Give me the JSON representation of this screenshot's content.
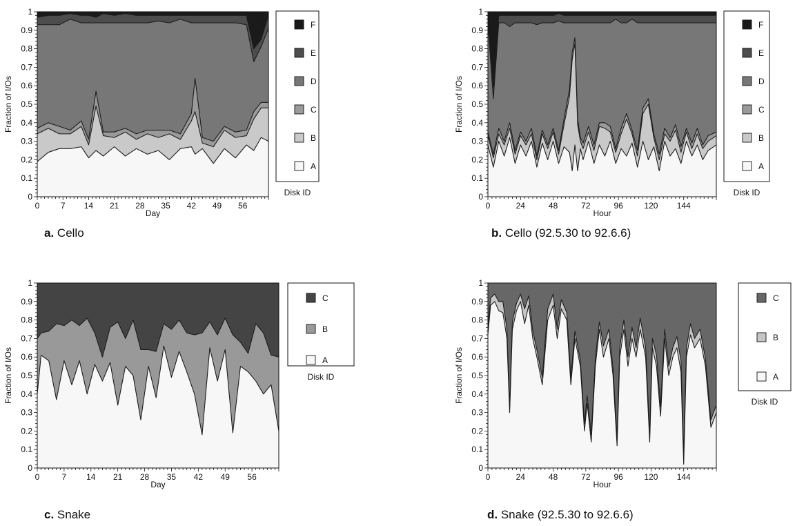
{
  "colors": {
    "A": "#f7f7f7",
    "B": "#c9c9c9",
    "C": "#9a9a9a",
    "D": "#777777",
    "E": "#4d4d4d",
    "F": "#1a1a1a",
    "snakeB": "#999999",
    "snakeC": "#444444",
    "hourSnakeB": "#c6c6c6",
    "hourSnakeC": "#676767",
    "stroke": "#1c1c1c"
  },
  "chart_data": [
    {
      "type": "area",
      "stacked": true,
      "caption_letter": "a.",
      "caption_text": "Cello",
      "xlabel": "Day",
      "ylabel": "Fraction of I/Os",
      "xlim": [
        0,
        63
      ],
      "ylim": [
        0,
        1
      ],
      "xticks": [
        0,
        7,
        14,
        21,
        28,
        35,
        42,
        49,
        56
      ],
      "yticks": [
        "0",
        "0.1",
        "0.2",
        "0.3",
        "0.4",
        "0.5",
        "0.6",
        "0.7",
        "0.8",
        "0.9",
        "1"
      ],
      "legend_title": "Disk ID",
      "legend_placement": "right",
      "x": [
        0,
        3,
        6,
        9,
        12,
        14,
        16,
        18,
        21,
        24,
        27,
        30,
        33,
        36,
        39,
        42,
        43,
        45,
        48,
        51,
        54,
        57,
        59,
        61,
        63
      ],
      "series": [
        {
          "name": "A",
          "values": [
            0.19,
            0.24,
            0.26,
            0.26,
            0.27,
            0.21,
            0.25,
            0.22,
            0.27,
            0.22,
            0.26,
            0.23,
            0.25,
            0.2,
            0.26,
            0.27,
            0.23,
            0.26,
            0.18,
            0.26,
            0.21,
            0.28,
            0.25,
            0.32,
            0.3
          ]
        },
        {
          "name": "B",
          "values": [
            0.15,
            0.13,
            0.08,
            0.08,
            0.11,
            0.07,
            0.24,
            0.11,
            0.05,
            0.13,
            0.05,
            0.11,
            0.07,
            0.14,
            0.05,
            0.14,
            0.23,
            0.03,
            0.09,
            0.1,
            0.11,
            0.05,
            0.17,
            0.16,
            0.18
          ]
        },
        {
          "name": "C",
          "values": [
            0.03,
            0.03,
            0.04,
            0.02,
            0.03,
            0.03,
            0.08,
            0.02,
            0.03,
            0.02,
            0.03,
            0.02,
            0.04,
            0.02,
            0.03,
            0.04,
            0.18,
            0.03,
            0.03,
            0.02,
            0.03,
            0.03,
            0.04,
            0.03,
            0.03
          ]
        },
        {
          "name": "D",
          "values": [
            0.56,
            0.53,
            0.55,
            0.6,
            0.53,
            0.63,
            0.37,
            0.59,
            0.59,
            0.57,
            0.6,
            0.58,
            0.59,
            0.58,
            0.62,
            0.49,
            0.3,
            0.62,
            0.64,
            0.56,
            0.59,
            0.57,
            0.27,
            0.3,
            0.4
          ]
        },
        {
          "name": "E",
          "values": [
            0.04,
            0.05,
            0.05,
            0.03,
            0.04,
            0.04,
            0.03,
            0.05,
            0.04,
            0.05,
            0.04,
            0.04,
            0.03,
            0.04,
            0.02,
            0.04,
            0.04,
            0.04,
            0.04,
            0.04,
            0.04,
            0.05,
            0.07,
            0.04,
            0.07
          ]
        },
        {
          "name": "F",
          "values": [
            0.03,
            0.02,
            0.02,
            0.01,
            0.02,
            0.02,
            0.03,
            0.01,
            0.02,
            0.01,
            0.02,
            0.02,
            0.02,
            0.02,
            0.02,
            0.02,
            0.02,
            0.02,
            0.02,
            0.02,
            0.02,
            0.02,
            0.2,
            0.15,
            0.02
          ]
        }
      ]
    },
    {
      "type": "area",
      "stacked": true,
      "caption_letter": "b.",
      "caption_text": "Cello (92.5.30 to 92.6.6)",
      "xlabel": "Hour",
      "ylabel": "Fraction of I/Os",
      "xlim": [
        0,
        168
      ],
      "ylim": [
        0,
        1
      ],
      "xticks": [
        0,
        24,
        48,
        72,
        96,
        120,
        144
      ],
      "yticks": [
        "0",
        "0.1",
        "0.2",
        "0.3",
        "0.4",
        "0.5",
        "0.6",
        "0.7",
        "0.8",
        "0.9",
        "1"
      ],
      "legend_title": "Disk ID",
      "legend_placement": "right",
      "x": [
        0,
        4,
        8,
        12,
        16,
        20,
        24,
        28,
        32,
        36,
        40,
        44,
        48,
        52,
        56,
        60,
        62,
        64,
        66,
        68,
        70,
        74,
        78,
        82,
        86,
        90,
        94,
        98,
        102,
        106,
        110,
        114,
        118,
        122,
        126,
        130,
        134,
        138,
        142,
        146,
        150,
        154,
        158,
        162,
        168
      ],
      "series": [
        {
          "name": "A",
          "values": [
            0.28,
            0.16,
            0.3,
            0.22,
            0.32,
            0.18,
            0.28,
            0.22,
            0.3,
            0.16,
            0.29,
            0.2,
            0.3,
            0.18,
            0.27,
            0.24,
            0.14,
            0.28,
            0.14,
            0.26,
            0.2,
            0.3,
            0.18,
            0.28,
            0.22,
            0.3,
            0.18,
            0.26,
            0.22,
            0.29,
            0.16,
            0.3,
            0.2,
            0.27,
            0.14,
            0.3,
            0.22,
            0.26,
            0.18,
            0.3,
            0.22,
            0.28,
            0.2,
            0.25,
            0.28
          ]
        },
        {
          "name": "B",
          "values": [
            0.05,
            0.05,
            0.04,
            0.06,
            0.05,
            0.05,
            0.05,
            0.06,
            0.04,
            0.04,
            0.05,
            0.06,
            0.05,
            0.05,
            0.12,
            0.3,
            0.6,
            0.55,
            0.25,
            0.04,
            0.06,
            0.05,
            0.07,
            0.1,
            0.15,
            0.05,
            0.06,
            0.08,
            0.2,
            0.05,
            0.06,
            0.15,
            0.3,
            0.05,
            0.06,
            0.04,
            0.08,
            0.1,
            0.06,
            0.05,
            0.04,
            0.06,
            0.06,
            0.05,
            0.05
          ]
        },
        {
          "name": "C",
          "values": [
            0.02,
            0.02,
            0.03,
            0.02,
            0.03,
            0.02,
            0.02,
            0.02,
            0.03,
            0.02,
            0.02,
            0.02,
            0.02,
            0.02,
            0.03,
            0.04,
            0.04,
            0.03,
            0.03,
            0.02,
            0.03,
            0.03,
            0.03,
            0.02,
            0.03,
            0.03,
            0.02,
            0.03,
            0.03,
            0.02,
            0.03,
            0.03,
            0.03,
            0.02,
            0.03,
            0.03,
            0.02,
            0.03,
            0.03,
            0.02,
            0.03,
            0.03,
            0.02,
            0.03,
            0.02
          ]
        },
        {
          "name": "D",
          "values": [
            0.59,
            0.3,
            0.57,
            0.64,
            0.52,
            0.69,
            0.59,
            0.64,
            0.57,
            0.71,
            0.58,
            0.66,
            0.57,
            0.7,
            0.52,
            0.36,
            0.16,
            0.08,
            0.52,
            0.62,
            0.65,
            0.56,
            0.66,
            0.54,
            0.54,
            0.56,
            0.7,
            0.57,
            0.49,
            0.6,
            0.69,
            0.46,
            0.41,
            0.6,
            0.71,
            0.57,
            0.62,
            0.55,
            0.67,
            0.57,
            0.65,
            0.57,
            0.66,
            0.61,
            0.59
          ]
        },
        {
          "name": "E",
          "values": [
            0.04,
            0.06,
            0.04,
            0.04,
            0.06,
            0.04,
            0.04,
            0.04,
            0.04,
            0.05,
            0.04,
            0.04,
            0.04,
            0.04,
            0.04,
            0.04,
            0.04,
            0.04,
            0.04,
            0.04,
            0.04,
            0.04,
            0.04,
            0.04,
            0.04,
            0.04,
            0.02,
            0.04,
            0.04,
            0.02,
            0.04,
            0.04,
            0.04,
            0.04,
            0.04,
            0.04,
            0.04,
            0.04,
            0.04,
            0.04,
            0.04,
            0.04,
            0.04,
            0.04,
            0.04
          ]
        },
        {
          "name": "F",
          "values": [
            0.02,
            0.01,
            0.02,
            0.02,
            0.02,
            0.02,
            0.02,
            0.02,
            0.02,
            0.02,
            0.02,
            0.02,
            0.02,
            0.01,
            0.02,
            0.02,
            0.02,
            0.02,
            0.02,
            0.02,
            0.02,
            0.02,
            0.02,
            0.02,
            0.02,
            0.02,
            0.02,
            0.02,
            0.02,
            0.02,
            0.02,
            0.02,
            0.02,
            0.02,
            0.02,
            0.02,
            0.02,
            0.02,
            0.02,
            0.02,
            0.02,
            0.02,
            0.02,
            0.02,
            0.02
          ]
        }
      ]
    },
    {
      "type": "area",
      "stacked": true,
      "caption_letter": "c.",
      "caption_text": "Snake",
      "xlabel": "Day",
      "ylabel": "Fraction of I/Os",
      "xlim": [
        0,
        63
      ],
      "ylim": [
        0,
        1
      ],
      "xticks": [
        0,
        7,
        14,
        21,
        28,
        35,
        42,
        49,
        56
      ],
      "yticks": [
        "0",
        "0.1",
        "0.2",
        "0.3",
        "0.4",
        "0.5",
        "0.6",
        "0.7",
        "0.8",
        "0.9",
        "1"
      ],
      "legend_title": "Disk ID",
      "legend_placement": "right",
      "x": [
        0,
        1,
        3,
        5,
        7,
        9,
        11,
        13,
        15,
        17,
        19,
        21,
        23,
        25,
        27,
        29,
        31,
        33,
        35,
        37,
        39,
        41,
        43,
        45,
        47,
        49,
        51,
        53,
        55,
        57,
        59,
        61,
        63
      ],
      "series": [
        {
          "name": "A",
          "values": [
            0.4,
            0.61,
            0.58,
            0.37,
            0.58,
            0.45,
            0.58,
            0.4,
            0.56,
            0.47,
            0.57,
            0.34,
            0.55,
            0.5,
            0.26,
            0.55,
            0.38,
            0.66,
            0.49,
            0.63,
            0.52,
            0.4,
            0.18,
            0.65,
            0.47,
            0.64,
            0.19,
            0.55,
            0.52,
            0.47,
            0.4,
            0.45,
            0.2
          ]
        },
        {
          "name": "B",
          "values": [
            0.3,
            0.12,
            0.16,
            0.41,
            0.19,
            0.35,
            0.19,
            0.41,
            0.17,
            0.13,
            0.19,
            0.45,
            0.15,
            0.3,
            0.38,
            0.09,
            0.25,
            0.12,
            0.26,
            0.17,
            0.21,
            0.32,
            0.55,
            0.14,
            0.25,
            0.17,
            0.53,
            0.13,
            0.1,
            0.31,
            0.33,
            0.16,
            0.4
          ]
        },
        {
          "name": "C",
          "values": [
            0.3,
            0.27,
            0.26,
            0.22,
            0.23,
            0.2,
            0.23,
            0.19,
            0.27,
            0.4,
            0.24,
            0.21,
            0.3,
            0.2,
            0.36,
            0.36,
            0.37,
            0.22,
            0.25,
            0.2,
            0.27,
            0.28,
            0.27,
            0.21,
            0.28,
            0.19,
            0.28,
            0.32,
            0.38,
            0.22,
            0.27,
            0.39,
            0.4
          ]
        }
      ]
    },
    {
      "type": "area",
      "stacked": true,
      "caption_letter": "d.",
      "caption_text": "Snake (92.5.30 to 92.6.6)",
      "xlabel": "Hour",
      "ylabel": "Fraction of I/Os",
      "xlim": [
        0,
        168
      ],
      "ylim": [
        0,
        1
      ],
      "xticks": [
        0,
        24,
        48,
        72,
        96,
        120,
        144
      ],
      "yticks": [
        "0",
        "0.1",
        "0.2",
        "0.3",
        "0.4",
        "0.5",
        "0.6",
        "0.7",
        "0.8",
        "0.9",
        "1"
      ],
      "legend_title": "Disk ID",
      "legend_placement": "right",
      "x": [
        0,
        2,
        5,
        8,
        11,
        14,
        16,
        18,
        21,
        24,
        27,
        30,
        33,
        36,
        40,
        44,
        48,
        51,
        54,
        58,
        61,
        64,
        68,
        71,
        73,
        76,
        79,
        82,
        85,
        89,
        92,
        95,
        97,
        100,
        103,
        106,
        109,
        112,
        116,
        119,
        121,
        124,
        127,
        130,
        133,
        136,
        139,
        142,
        144,
        146,
        149,
        152,
        156,
        160,
        164,
        168
      ],
      "series": [
        {
          "name": "A",
          "values": [
            0.72,
            0.88,
            0.9,
            0.85,
            0.84,
            0.7,
            0.3,
            0.75,
            0.85,
            0.9,
            0.78,
            0.88,
            0.7,
            0.6,
            0.45,
            0.8,
            0.88,
            0.7,
            0.86,
            0.8,
            0.45,
            0.7,
            0.55,
            0.2,
            0.35,
            0.14,
            0.55,
            0.75,
            0.6,
            0.7,
            0.5,
            0.12,
            0.6,
            0.75,
            0.55,
            0.7,
            0.6,
            0.75,
            0.6,
            0.14,
            0.65,
            0.55,
            0.28,
            0.7,
            0.5,
            0.6,
            0.65,
            0.52,
            0.02,
            0.6,
            0.72,
            0.65,
            0.7,
            0.55,
            0.22,
            0.3
          ]
        },
        {
          "name": "B",
          "values": [
            0.04,
            0.04,
            0.04,
            0.05,
            0.06,
            0.05,
            0.03,
            0.04,
            0.04,
            0.04,
            0.08,
            0.05,
            0.04,
            0.04,
            0.04,
            0.06,
            0.06,
            0.05,
            0.05,
            0.04,
            0.04,
            0.04,
            0.03,
            0.04,
            0.04,
            0.04,
            0.04,
            0.04,
            0.06,
            0.05,
            0.04,
            0.04,
            0.05,
            0.05,
            0.05,
            0.06,
            0.05,
            0.06,
            0.05,
            0.04,
            0.05,
            0.06,
            0.05,
            0.05,
            0.05,
            0.05,
            0.06,
            0.06,
            0.05,
            0.05,
            0.06,
            0.05,
            0.05,
            0.04,
            0.04,
            0.04
          ]
        },
        {
          "name": "C",
          "values": [
            0.24,
            0.08,
            0.06,
            0.1,
            0.1,
            0.25,
            0.67,
            0.21,
            0.11,
            0.06,
            0.14,
            0.07,
            0.26,
            0.36,
            0.51,
            0.14,
            0.06,
            0.25,
            0.09,
            0.16,
            0.51,
            0.26,
            0.42,
            0.76,
            0.61,
            0.82,
            0.41,
            0.21,
            0.34,
            0.25,
            0.46,
            0.84,
            0.35,
            0.2,
            0.4,
            0.24,
            0.35,
            0.19,
            0.35,
            0.82,
            0.3,
            0.39,
            0.67,
            0.25,
            0.45,
            0.35,
            0.29,
            0.42,
            0.93,
            0.35,
            0.22,
            0.3,
            0.25,
            0.41,
            0.74,
            0.66
          ]
        }
      ]
    }
  ]
}
